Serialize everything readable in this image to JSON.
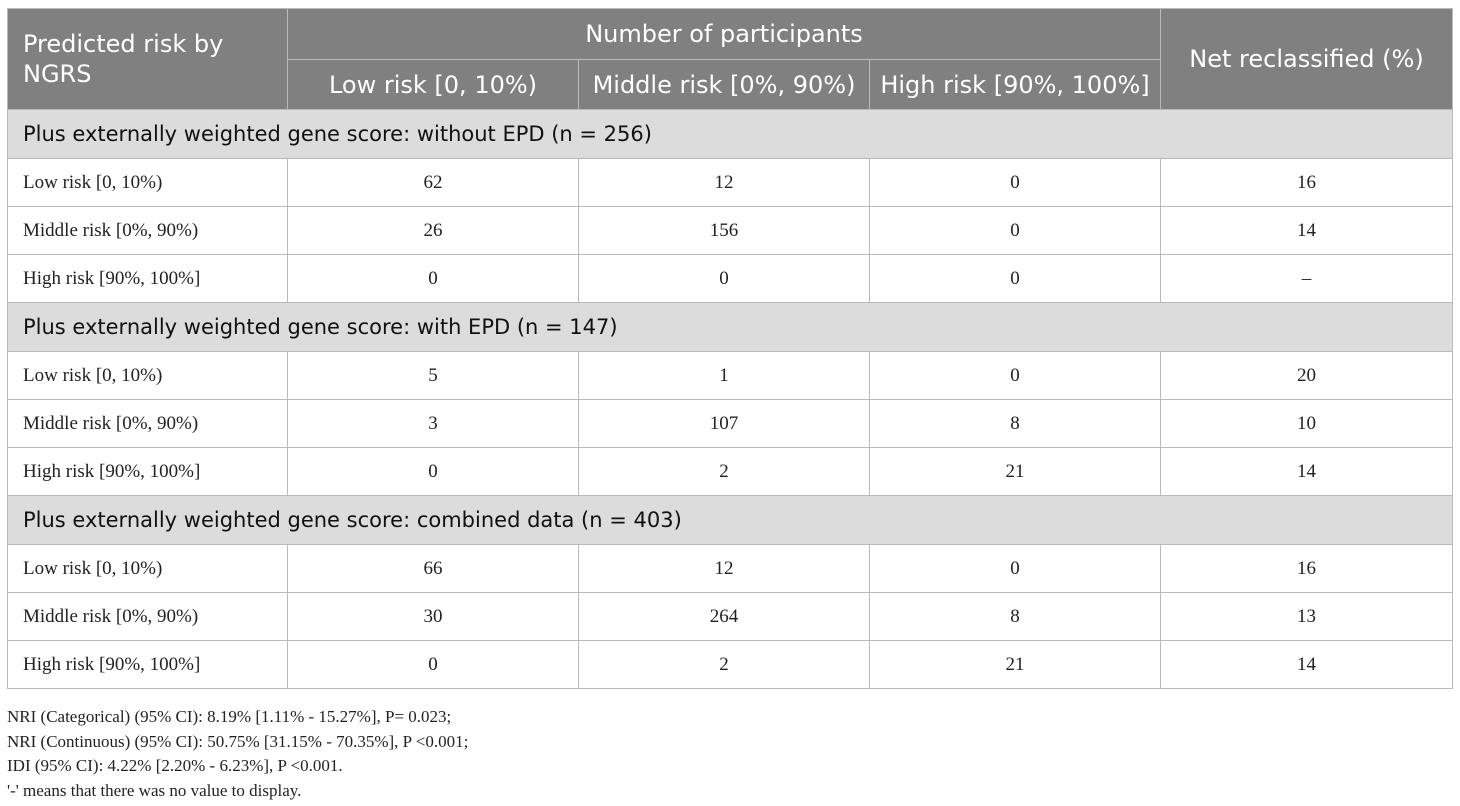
{
  "header": {
    "first_col": "Predicted risk by NGRS",
    "group": "Number of participants",
    "col_low": "Low risk [0, 10%)",
    "col_mid": "Middle risk [0%, 90%)",
    "col_high": "High risk [90%, 100%]",
    "col_net": "Net reclassified (%)"
  },
  "sections": [
    {
      "title": "Plus externally weighted gene score: without EPD (n = 256)",
      "rows": [
        {
          "label": "Low risk [0, 10%)",
          "low": "62",
          "mid": "12",
          "high": "0",
          "net": "16"
        },
        {
          "label": "Middle risk [0%, 90%)",
          "low": "26",
          "mid": "156",
          "high": "0",
          "net": "14"
        },
        {
          "label": "High risk [90%, 100%]",
          "low": "0",
          "mid": "0",
          "high": "0",
          "net": "–"
        }
      ]
    },
    {
      "title": "Plus externally weighted gene score: with EPD (n = 147)",
      "rows": [
        {
          "label": "Low risk [0, 10%)",
          "low": "5",
          "mid": "1",
          "high": "0",
          "net": "20"
        },
        {
          "label": "Middle risk [0%, 90%)",
          "low": "3",
          "mid": "107",
          "high": "8",
          "net": "10"
        },
        {
          "label": "High risk [90%, 100%]",
          "low": "0",
          "mid": "2",
          "high": "21",
          "net": "14"
        }
      ]
    },
    {
      "title": "Plus externally weighted gene score: combined data (n = 403)",
      "rows": [
        {
          "label": "Low risk [0, 10%)",
          "low": "66",
          "mid": "12",
          "high": "0",
          "net": "16"
        },
        {
          "label": "Middle risk [0%, 90%)",
          "low": "30",
          "mid": "264",
          "high": "8",
          "net": "13"
        },
        {
          "label": "High risk [90%, 100%]",
          "low": "0",
          "mid": "2",
          "high": "21",
          "net": "14"
        }
      ]
    }
  ],
  "notes": [
    "NRI (Categorical) (95% CI): 8.19% [1.11% - 15.27%], P= 0.023;",
    "NRI (Continuous) (95% CI): 50.75% [31.15% - 70.35%], P <0.001;",
    "IDI (95% CI): 4.22% [2.20% - 6.23%], P <0.001.",
    "'-' means that there was no value to display."
  ]
}
